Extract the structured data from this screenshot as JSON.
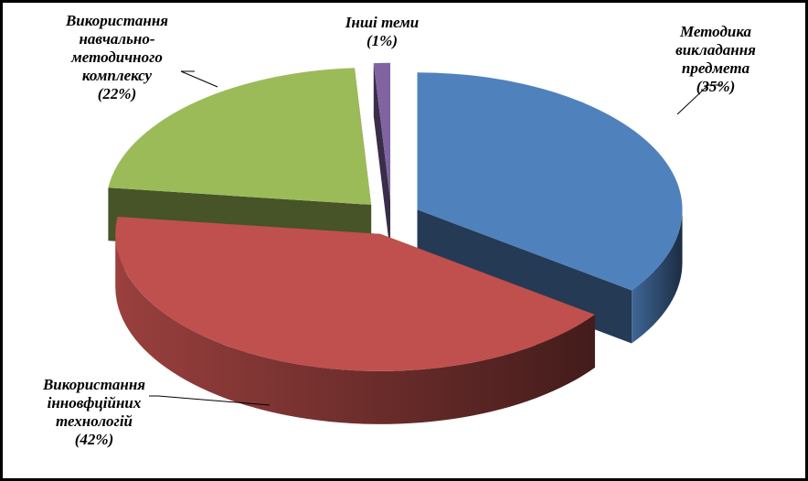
{
  "chart_data": {
    "type": "pie3d",
    "categories": [
      "Методика\nвикладання\nпредмета",
      "Використання\nінновфційних\nтехнологій",
      "Використання\nнавчально-\nметодичного\nкомплексу",
      "Інші теми"
    ],
    "values": [
      35,
      42,
      22,
      1
    ],
    "value_labels": [
      "(35%)",
      "(42%)",
      "(22%)",
      "(1%)"
    ],
    "colors": [
      "#4f81bd",
      "#c0504d",
      "#9bbb59",
      "#8064a2"
    ]
  }
}
